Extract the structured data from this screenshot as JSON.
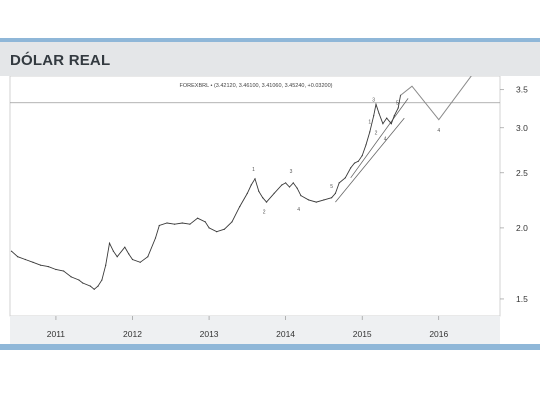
{
  "header": {
    "title": "DÓLAR REAL"
  },
  "chart_data": {
    "type": "line",
    "title": "",
    "legend_text": "FOREXBRL • (3.42120, 3.46100, 3.41060, 3.45240, +0.03200)",
    "xlabel": "",
    "ylabel": "",
    "x_tick_labels": [
      "2011",
      "2012",
      "2013",
      "2014",
      "2015",
      "2016"
    ],
    "y_tick_labels": [
      "1.5",
      "2.0",
      "2.5",
      "3.0",
      "3.5"
    ],
    "ylim": [
      1.4,
      3.7
    ],
    "xlim": [
      2010.4,
      2016.8
    ],
    "y_scale": "log",
    "horizontal_line": 3.32,
    "series": [
      {
        "values": [
          [
            2010.42,
            1.82
          ],
          [
            2010.5,
            1.78
          ],
          [
            2010.6,
            1.76
          ],
          [
            2010.7,
            1.74
          ],
          [
            2010.8,
            1.72
          ],
          [
            2010.9,
            1.71
          ],
          [
            2011.0,
            1.69
          ],
          [
            2011.1,
            1.68
          ],
          [
            2011.2,
            1.64
          ],
          [
            2011.3,
            1.62
          ],
          [
            2011.35,
            1.6
          ],
          [
            2011.45,
            1.58
          ],
          [
            2011.5,
            1.56
          ],
          [
            2011.55,
            1.58
          ],
          [
            2011.6,
            1.62
          ],
          [
            2011.65,
            1.72
          ],
          [
            2011.7,
            1.88
          ],
          [
            2011.75,
            1.82
          ],
          [
            2011.8,
            1.78
          ],
          [
            2011.9,
            1.85
          ],
          [
            2011.95,
            1.8
          ],
          [
            2012.0,
            1.76
          ],
          [
            2012.1,
            1.74
          ],
          [
            2012.2,
            1.78
          ],
          [
            2012.3,
            1.92
          ],
          [
            2012.35,
            2.02
          ],
          [
            2012.45,
            2.04
          ],
          [
            2012.55,
            2.03
          ],
          [
            2012.65,
            2.04
          ],
          [
            2012.75,
            2.03
          ],
          [
            2012.85,
            2.08
          ],
          [
            2012.95,
            2.05
          ],
          [
            2013.0,
            2.0
          ],
          [
            2013.1,
            1.97
          ],
          [
            2013.2,
            1.99
          ],
          [
            2013.3,
            2.05
          ],
          [
            2013.4,
            2.18
          ],
          [
            2013.5,
            2.3
          ],
          [
            2013.55,
            2.38
          ],
          [
            2013.6,
            2.44
          ],
          [
            2013.65,
            2.32
          ],
          [
            2013.7,
            2.26
          ],
          [
            2013.75,
            2.22
          ],
          [
            2013.85,
            2.3
          ],
          [
            2013.95,
            2.38
          ],
          [
            2014.0,
            2.4
          ],
          [
            2014.05,
            2.36
          ],
          [
            2014.1,
            2.4
          ],
          [
            2014.15,
            2.35
          ],
          [
            2014.2,
            2.28
          ],
          [
            2014.3,
            2.24
          ],
          [
            2014.4,
            2.22
          ],
          [
            2014.5,
            2.24
          ],
          [
            2014.6,
            2.26
          ],
          [
            2014.65,
            2.3
          ],
          [
            2014.7,
            2.4
          ],
          [
            2014.78,
            2.45
          ],
          [
            2014.85,
            2.55
          ],
          [
            2014.9,
            2.6
          ],
          [
            2014.95,
            2.62
          ],
          [
            2015.0,
            2.68
          ],
          [
            2015.05,
            2.8
          ],
          [
            2015.1,
            2.95
          ],
          [
            2015.15,
            3.15
          ],
          [
            2015.18,
            3.3
          ],
          [
            2015.22,
            3.18
          ],
          [
            2015.27,
            3.05
          ],
          [
            2015.32,
            3.12
          ],
          [
            2015.38,
            3.05
          ],
          [
            2015.42,
            3.15
          ],
          [
            2015.47,
            3.25
          ],
          [
            2015.5,
            3.42
          ]
        ]
      }
    ],
    "wave_labels": [
      "1",
      "2",
      "3",
      "4",
      "5",
      "1",
      "2",
      "3",
      "4",
      "5",
      "3",
      "4",
      "5"
    ],
    "projection": [
      [
        2015.5,
        3.42
      ],
      [
        2015.65,
        3.55
      ],
      [
        2016.0,
        3.1
      ],
      [
        2016.55,
        3.9
      ]
    ]
  }
}
